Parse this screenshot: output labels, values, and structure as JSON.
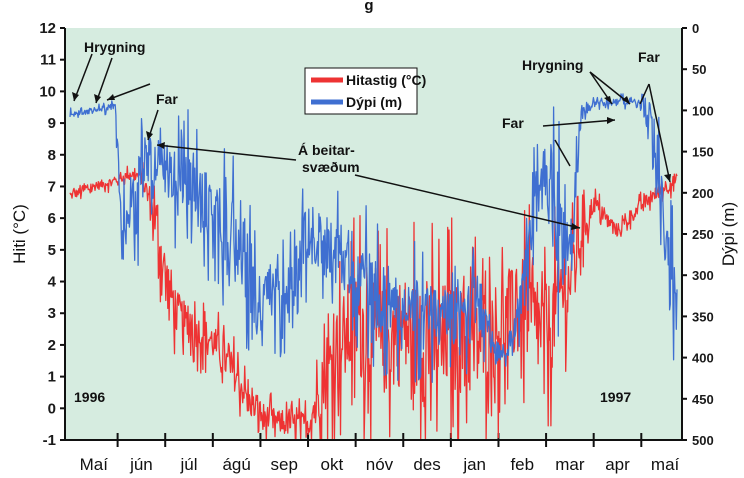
{
  "chart_data": {
    "type": "line",
    "title": "",
    "title_visible_fragment": "g",
    "ylabel_left": "Hiti (°C)",
    "ylabel_right": "Dýpi (m)",
    "ylim_left": [
      -1,
      12
    ],
    "ylim_right": [
      500,
      0
    ],
    "yticks_left": [
      -1,
      0,
      1,
      2,
      3,
      4,
      5,
      6,
      7,
      8,
      9,
      10,
      11,
      12
    ],
    "yticks_right": [
      0,
      50,
      100,
      150,
      200,
      250,
      300,
      350,
      400,
      450,
      500
    ],
    "months": [
      "Maí",
      "jún",
      "júl",
      "ágú",
      "sep",
      "okt",
      "nóv",
      "des",
      "jan",
      "feb",
      "mar",
      "apr",
      "maí"
    ],
    "year_labels": [
      "1996",
      "1997"
    ],
    "legend": {
      "placement": "top-center",
      "entries": [
        "Hitastig (°C)",
        "Dýpi (m)"
      ]
    },
    "colors": {
      "temperature": "#ee3333",
      "depth": "#3f6fd1",
      "plot_background": "#d6ece0",
      "legend_background": "#ffffff"
    },
    "annotations": [
      {
        "id": "hrygning_1",
        "text": "Hrygning"
      },
      {
        "id": "far_1",
        "text": "Far"
      },
      {
        "id": "beitar",
        "text_line1": "Á beitar-",
        "text_line2": "svæðum"
      },
      {
        "id": "far_2",
        "text": "Far"
      },
      {
        "id": "hrygning_2",
        "text": "Hrygning"
      },
      {
        "id": "far_3",
        "text": "Far"
      }
    ],
    "series": [
      {
        "name": "Hitastig (°C)",
        "axis": "left",
        "months": [
          0,
          0.5,
          1.0,
          1.25,
          1.5,
          1.75,
          2.0,
          2.25,
          2.5,
          3.0,
          3.5,
          3.75,
          4.0,
          4.5,
          5.0,
          5.5,
          6.0,
          6.5,
          7.0,
          7.5,
          8.0,
          8.5,
          9.0,
          9.5,
          10.0,
          10.25,
          10.5,
          10.75,
          11.0,
          11.25,
          11.5,
          11.75,
          12.0,
          12.5,
          12.75
        ],
        "values": [
          6.7,
          7.0,
          7.2,
          7.4,
          7.3,
          6.2,
          4.2,
          3.0,
          2.6,
          2.1,
          1.0,
          0.2,
          -0.2,
          -0.5,
          -0.5,
          1.5,
          2.8,
          2.0,
          2.5,
          1.9,
          2.3,
          2.0,
          2.5,
          3.2,
          2.2,
          3.5,
          4.0,
          5.5,
          6.5,
          6.0,
          5.6,
          6.0,
          6.4,
          7.0,
          7.2
        ],
        "amplitude_c": [
          0.2,
          0.2,
          0.2,
          0.2,
          0.3,
          1.0,
          1.3,
          1.0,
          0.8,
          0.8,
          0.8,
          0.6,
          0.6,
          0.5,
          0.6,
          1.8,
          2.5,
          2.5,
          2.5,
          2.8,
          2.5,
          2.5,
          2.2,
          2.2,
          2.2,
          2.0,
          1.5,
          1.0,
          0.4,
          0.3,
          0.3,
          0.3,
          0.3,
          0.3,
          0.3
        ]
      },
      {
        "name": "Dýpi (m)",
        "axis": "right",
        "months": [
          0,
          0.5,
          0.95,
          1.1,
          1.25,
          1.4,
          1.5,
          1.6,
          1.75,
          2.0,
          2.5,
          3.0,
          3.5,
          4.0,
          4.5,
          5.0,
          5.5,
          6.0,
          6.5,
          7.0,
          7.5,
          8.0,
          8.5,
          8.9,
          9.2,
          9.5,
          9.8,
          10.0,
          10.25,
          10.5,
          10.75,
          11.0,
          11.25,
          11.5,
          11.75,
          12.0,
          12.25,
          12.5,
          12.75
        ],
        "values": [
          105,
          100,
          95,
          270,
          200,
          245,
          160,
          150,
          165,
          180,
          195,
          225,
          250,
          340,
          300,
          250,
          270,
          290,
          330,
          340,
          350,
          350,
          320,
          395,
          395,
          320,
          220,
          180,
          230,
          290,
          100,
          92,
          90,
          90,
          88,
          95,
          115,
          250,
          330
        ],
        "amplitude_m": [
          5,
          5,
          5,
          40,
          60,
          60,
          40,
          40,
          45,
          55,
          60,
          60,
          70,
          60,
          60,
          55,
          55,
          60,
          60,
          55,
          55,
          55,
          60,
          10,
          10,
          40,
          80,
          90,
          90,
          70,
          10,
          6,
          6,
          6,
          6,
          10,
          40,
          60,
          60
        ]
      }
    ]
  }
}
